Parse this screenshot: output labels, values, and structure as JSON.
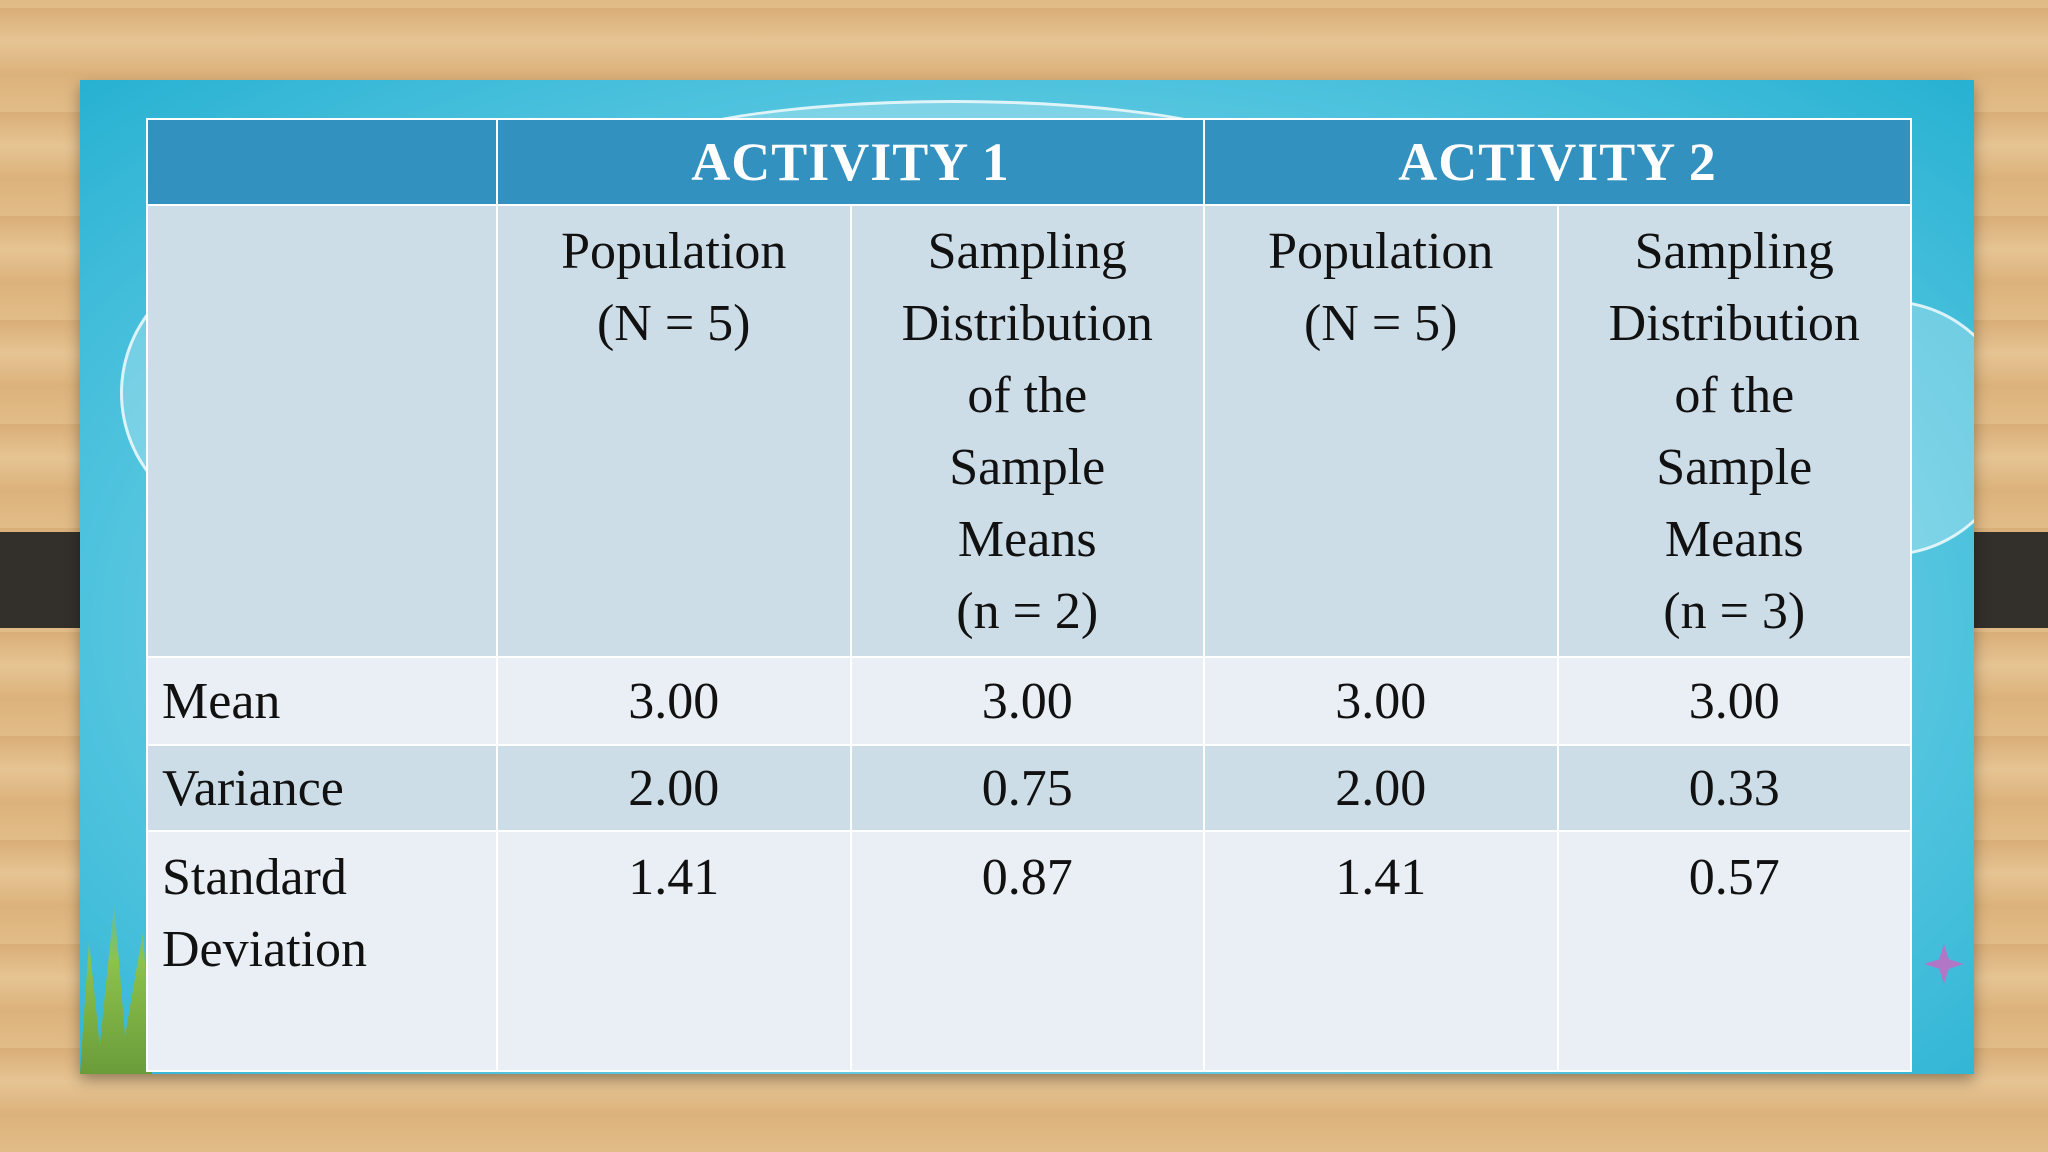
{
  "table": {
    "group_headers": [
      "ACTIVITY 1",
      "ACTIVITY 2"
    ],
    "columns": [
      {
        "lines": [
          "Population",
          "(N = 5)"
        ]
      },
      {
        "lines": [
          "Sampling",
          "Distribution",
          "of  the",
          "Sample",
          "Means",
          "(n = 2)"
        ]
      },
      {
        "lines": [
          "Population",
          "(N = 5)"
        ]
      },
      {
        "lines": [
          "Sampling",
          "Distribution",
          "of  the",
          "Sample",
          "Means",
          "(n = 3)"
        ]
      }
    ],
    "rows": [
      {
        "label_lines": [
          "Mean"
        ],
        "values": [
          "3.00",
          "3.00",
          "3.00",
          "3.00"
        ]
      },
      {
        "label_lines": [
          "Variance"
        ],
        "values": [
          "2.00",
          "0.75",
          "2.00",
          "0.33"
        ]
      },
      {
        "label_lines": [
          "Standard",
          "Deviation"
        ],
        "values": [
          "1.41",
          "0.87",
          "1.41",
          "0.57"
        ]
      }
    ]
  },
  "colors": {
    "header_blue": "#3391bf",
    "band_dark": "#cddde8",
    "band_light": "#e9eff4",
    "slide_blue": "#4fc3de"
  }
}
